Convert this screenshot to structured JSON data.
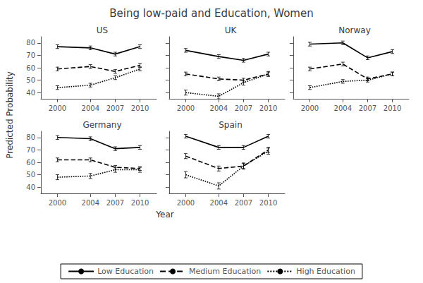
{
  "title": "Being low-paid and Education, Women",
  "xlabel": "Year",
  "ylabel": "Predicted Probability",
  "legend": "bottom",
  "chart_data": [
    {
      "type": "line",
      "title": "US",
      "x": [
        2000,
        2004,
        2007,
        2010
      ],
      "xlim": [
        1998,
        2012
      ],
      "xticks": [
        2000,
        2004,
        2007,
        2010
      ],
      "ylim": [
        35,
        85
      ],
      "yticks": [
        40,
        50,
        60,
        70,
        80
      ],
      "grid": false,
      "series": [
        {
          "name": "Low Education",
          "color": "black",
          "line_style": "solid",
          "values": [
            77,
            76,
            71,
            77
          ],
          "yerr": [
            1.5,
            1.5,
            1.5,
            1.5
          ]
        },
        {
          "name": "Medium Education",
          "color": "black",
          "line_style": "dashed",
          "values": [
            59,
            61,
            57,
            62
          ],
          "yerr": [
            1.5,
            1.5,
            1.5,
            1.5
          ]
        },
        {
          "name": "High Education",
          "color": "black",
          "line_style": "dotted",
          "values": [
            44,
            46,
            52,
            59
          ],
          "yerr": [
            1.5,
            1.5,
            1.5,
            1.5
          ]
        }
      ]
    },
    {
      "type": "line",
      "title": "UK",
      "x": [
        2000,
        2004,
        2007,
        2010
      ],
      "xlim": [
        1998,
        2012
      ],
      "xticks": [
        2000,
        2004,
        2007,
        2010
      ],
      "ylim": [
        35,
        85
      ],
      "yticks": [
        40,
        50,
        60,
        70,
        80
      ],
      "grid": false,
      "tick_labels": "x",
      "series": [
        {
          "name": "Low Education",
          "color": "black",
          "line_style": "solid",
          "values": [
            74,
            69,
            66,
            71
          ],
          "yerr": [
            1.5,
            1.5,
            1.5,
            1.5
          ]
        },
        {
          "name": "Medium Education",
          "color": "black",
          "line_style": "dashed",
          "values": [
            55,
            51,
            50,
            55
          ],
          "yerr": [
            1.5,
            1.5,
            1.5,
            1.5
          ]
        },
        {
          "name": "High Education",
          "color": "black",
          "line_style": "dotted",
          "values": [
            40,
            37,
            48,
            55
          ],
          "yerr": [
            2.0,
            2.0,
            2.0,
            2.0
          ]
        }
      ]
    },
    {
      "type": "line",
      "title": "Norway",
      "x": [
        2000,
        2004,
        2007,
        2010
      ],
      "xlim": [
        1998,
        2012
      ],
      "xticks": [
        2000,
        2004,
        2007,
        2010
      ],
      "ylim": [
        35,
        85
      ],
      "yticks": [
        40,
        50,
        60,
        70,
        80
      ],
      "grid": false,
      "tick_labels": "x",
      "series": [
        {
          "name": "Low Education",
          "color": "black",
          "line_style": "solid",
          "values": [
            79,
            80,
            68,
            73
          ],
          "yerr": [
            1.5,
            1.5,
            1.5,
            1.5
          ]
        },
        {
          "name": "Medium Education",
          "color": "black",
          "line_style": "dashed",
          "values": [
            59,
            63,
            51,
            55
          ],
          "yerr": [
            1.5,
            1.5,
            1.5,
            1.5
          ]
        },
        {
          "name": "High Education",
          "color": "black",
          "line_style": "dotted",
          "values": [
            44,
            49,
            50,
            55
          ],
          "yerr": [
            1.5,
            1.5,
            1.5,
            1.5
          ]
        }
      ]
    },
    {
      "type": "line",
      "title": "Germany",
      "x": [
        2000,
        2004,
        2007,
        2010
      ],
      "xlim": [
        1998,
        2012
      ],
      "xticks": [
        2000,
        2004,
        2007,
        2010
      ],
      "ylim": [
        35,
        85
      ],
      "yticks": [
        40,
        50,
        60,
        70,
        80
      ],
      "grid": false,
      "series": [
        {
          "name": "Low Education",
          "color": "black",
          "line_style": "solid",
          "values": [
            80,
            79,
            71,
            72
          ],
          "yerr": [
            1.5,
            1.5,
            1.5,
            1.5
          ]
        },
        {
          "name": "Medium Education",
          "color": "black",
          "line_style": "dashed",
          "values": [
            62,
            62,
            56,
            55
          ],
          "yerr": [
            1.5,
            1.5,
            1.5,
            1.5
          ]
        },
        {
          "name": "High Education",
          "color": "black",
          "line_style": "dotted",
          "values": [
            48,
            49,
            54,
            54
          ],
          "yerr": [
            2.0,
            2.0,
            2.0,
            2.0
          ]
        }
      ]
    },
    {
      "type": "line",
      "title": "Spain",
      "x": [
        2000,
        2004,
        2007,
        2010
      ],
      "xlim": [
        1998,
        2012
      ],
      "xticks": [
        2000,
        2004,
        2007,
        2010
      ],
      "ylim": [
        35,
        85
      ],
      "yticks": [
        40,
        50,
        60,
        70,
        80
      ],
      "grid": false,
      "tick_labels": "x",
      "series": [
        {
          "name": "Low Education",
          "color": "black",
          "line_style": "solid",
          "values": [
            81,
            72,
            72,
            81
          ],
          "yerr": [
            1.5,
            1.5,
            1.5,
            1.5
          ]
        },
        {
          "name": "Medium Education",
          "color": "black",
          "line_style": "dashed",
          "values": [
            65,
            55,
            57,
            70
          ],
          "yerr": [
            2.0,
            2.0,
            2.0,
            2.0
          ]
        },
        {
          "name": "High Education",
          "color": "black",
          "line_style": "dotted",
          "values": [
            50,
            41,
            57,
            69
          ],
          "yerr": [
            2.5,
            2.5,
            2.5,
            2.5
          ]
        }
      ]
    }
  ]
}
